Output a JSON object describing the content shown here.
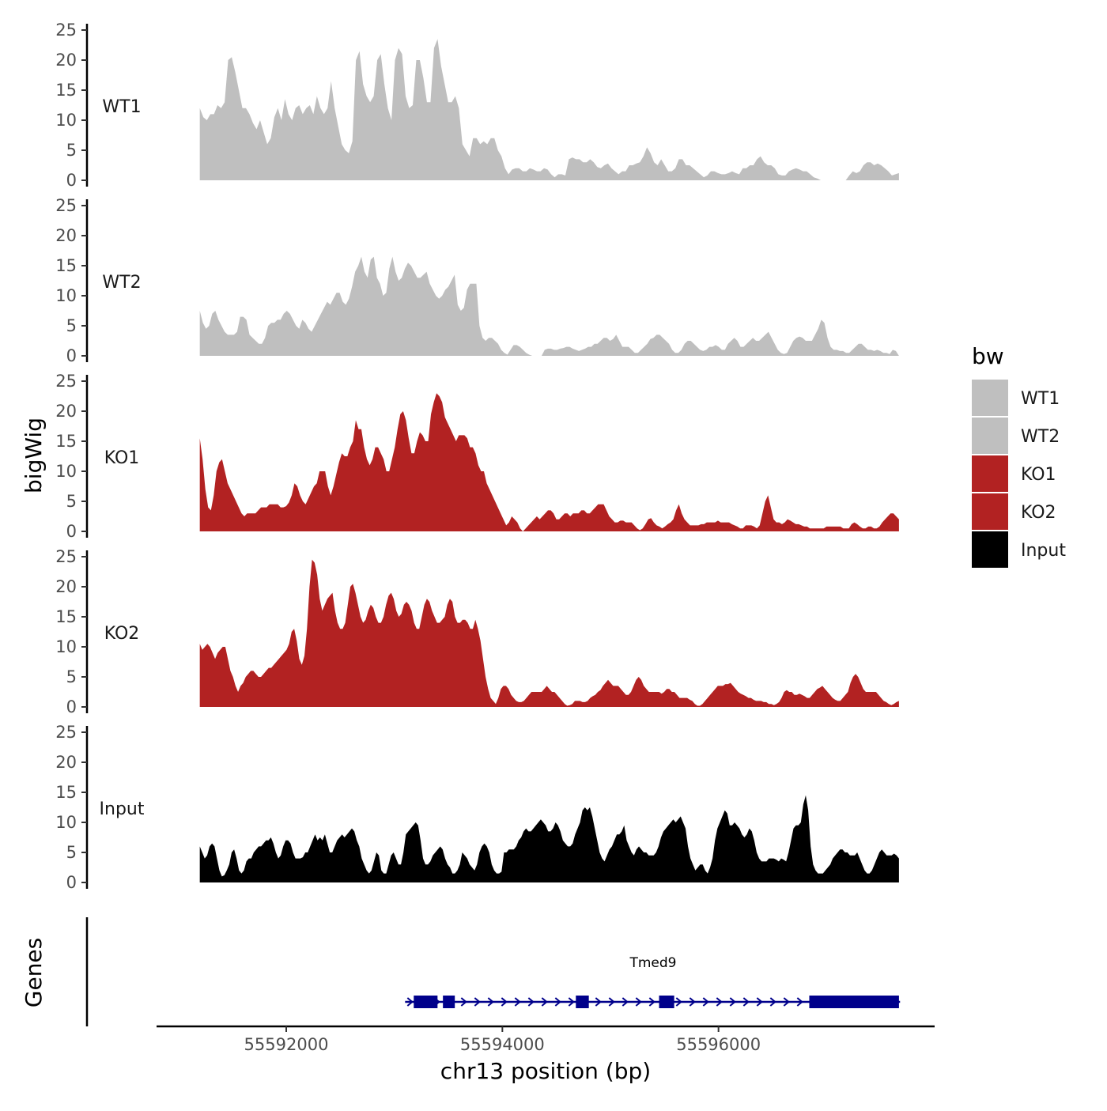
{
  "chart_data": {
    "type": "area",
    "ylabel": "bigWig",
    "genes_label": "Genes",
    "xlabel": "chr13 position (bp)",
    "xlim": [
      55590800,
      55598000
    ],
    "data_range": [
      55591200,
      55597670
    ],
    "x_ticks": [
      55592000,
      55594000,
      55596000
    ],
    "x_tick_labels": [
      "55592000",
      "55594000",
      "55596000"
    ],
    "ylim": [
      0,
      25
    ],
    "y_ticks": [
      0,
      5,
      10,
      15,
      20,
      25
    ],
    "y_tick_labels": [
      "0",
      "5",
      "10",
      "15",
      "20",
      "25"
    ],
    "legend": {
      "title": "bw",
      "position": "right",
      "entries": [
        {
          "label": "WT1",
          "color": "#bfbfbf"
        },
        {
          "label": "WT2",
          "color": "#bfbfbf"
        },
        {
          "label": "KO1",
          "color": "#b22222"
        },
        {
          "label": "KO2",
          "color": "#b22222"
        },
        {
          "label": "Input",
          "color": "#000000"
        }
      ]
    },
    "series": [
      {
        "name": "WT1",
        "color": "#bfbfbf",
        "values": [
          12,
          10.5,
          10,
          11,
          11,
          12.5,
          12,
          13,
          20,
          20.5,
          18,
          15,
          12,
          12,
          11,
          9.5,
          8.5,
          10,
          8,
          6,
          7,
          10.5,
          12,
          10,
          13.5,
          11,
          10,
          12,
          12.5,
          11,
          12,
          12.5,
          11,
          14,
          12,
          11,
          12,
          16.5,
          12,
          9,
          6,
          5,
          4.5,
          6.5,
          20,
          21.5,
          16,
          14,
          13,
          14,
          20,
          21,
          16,
          12,
          10,
          20,
          22,
          21,
          14,
          12,
          12.5,
          20,
          20,
          17,
          13,
          13,
          22,
          23.5,
          19,
          16,
          13,
          13,
          14,
          12,
          6,
          5,
          4,
          7,
          7,
          6,
          6.5,
          6,
          7,
          7,
          5,
          4,
          2,
          1,
          1.8,
          2,
          2,
          1.5,
          1.5,
          2,
          1.8,
          1.5,
          1.5,
          2,
          1.8,
          1,
          0.5,
          1,
          1,
          0.8,
          3.5,
          3.8,
          3.5,
          3.5,
          3,
          3,
          3.5,
          3,
          2.2,
          2,
          2.5,
          2.8,
          2,
          1.5,
          1,
          1.5,
          1.5,
          2.5,
          2.5,
          2.8,
          3,
          4,
          5.5,
          4.5,
          3,
          2.5,
          3.5,
          2.5,
          1.5,
          1.5,
          2,
          3.5,
          3.5,
          2.5,
          2.5,
          2,
          1.5,
          1,
          0.5,
          0.8,
          1.5,
          1.5,
          1.2,
          1,
          1,
          1.2,
          1.5,
          1.2,
          1,
          2,
          2,
          2.5,
          2.5,
          3.5,
          4,
          3,
          2.5,
          2.5,
          2,
          1,
          0.8,
          0.8,
          1.5,
          1.8,
          2,
          1.8,
          1.5,
          1.5,
          1,
          0.5,
          0.3,
          0,
          0,
          0,
          0,
          0,
          0,
          0,
          0,
          0.8,
          1.5,
          1.2,
          1.5,
          2.5,
          3,
          3,
          2.5,
          2.8,
          2.5,
          2,
          1.5,
          0.8,
          1,
          1.2
        ]
      },
      {
        "name": "WT2",
        "color": "#bfbfbf",
        "values": [
          7.5,
          5.5,
          4.5,
          5,
          7,
          7.5,
          6,
          5,
          4,
          3.5,
          3.5,
          3.5,
          4,
          6.5,
          6.5,
          6,
          3.5,
          3,
          2.5,
          2,
          2,
          3,
          5,
          5.5,
          5.5,
          6,
          6,
          7,
          7.5,
          7,
          6,
          5,
          4.5,
          6,
          5.5,
          4.5,
          4,
          5,
          6,
          7,
          8,
          9,
          8.5,
          9.5,
          10.5,
          10.5,
          9,
          8.5,
          9.5,
          11.5,
          14,
          15,
          16.5,
          14,
          13,
          16,
          16.5,
          13,
          12,
          10,
          10.5,
          14.5,
          16.5,
          14,
          12.5,
          13,
          14.5,
          15.5,
          15,
          14,
          13,
          13,
          13.5,
          14,
          12,
          11,
          10,
          9.5,
          10,
          11,
          11.5,
          12.5,
          13.5,
          8.5,
          7.5,
          8,
          11,
          12,
          12,
          12,
          5,
          3,
          2.5,
          3,
          3,
          2.5,
          2,
          1,
          0.5,
          0.2,
          1,
          1.8,
          1.8,
          1.5,
          1,
          0.5,
          0.2,
          0,
          0,
          0,
          0,
          1,
          1.2,
          1.2,
          1,
          1,
          1.2,
          1.3,
          1.5,
          1.5,
          1.2,
          1,
          0.8,
          1,
          1.2,
          1.5,
          1.5,
          2,
          2,
          2.5,
          3,
          3,
          2.5,
          2.8,
          3.5,
          2.5,
          1.5,
          1.5,
          1.5,
          1,
          0.5,
          0.5,
          1,
          1.5,
          2,
          2.8,
          3,
          3.5,
          3.5,
          3,
          2.5,
          2,
          1,
          0.5,
          0.5,
          1,
          2,
          2.5,
          2.5,
          2,
          1.5,
          1,
          0.8,
          1,
          1.5,
          1.5,
          1.8,
          1.5,
          1,
          1,
          2,
          2.5,
          3,
          2.5,
          1.5,
          1.5,
          2,
          2.5,
          3,
          2.5,
          2.5,
          3,
          3.5,
          4,
          3,
          2,
          1,
          0.5,
          0.3,
          0.5,
          1.5,
          2.5,
          3,
          3.2,
          3,
          2.5,
          2.5,
          2.5,
          3.5,
          4.5,
          6,
          5.5,
          3,
          1.5,
          1,
          1,
          0.8,
          0.8,
          0.5,
          0.5,
          1,
          1.5,
          2,
          2,
          1.5,
          1,
          1,
          0.8,
          1,
          0.8,
          0.5,
          0.5,
          0.3,
          1,
          0.8,
          0
        ]
      },
      {
        "name": "KO1",
        "color": "#b22222",
        "values": [
          15.5,
          12,
          7,
          4,
          3.5,
          6,
          10,
          11.5,
          12,
          10,
          8,
          7,
          6,
          5,
          4,
          3,
          2.5,
          3,
          3,
          3,
          3,
          3.5,
          4,
          4,
          4,
          4.5,
          4.5,
          4.5,
          4.5,
          4,
          4,
          4.2,
          4.8,
          6,
          8,
          7.5,
          6,
          5,
          4.5,
          5.5,
          6.5,
          7.5,
          8,
          10,
          10,
          10,
          7.5,
          6,
          7.5,
          9.5,
          11.5,
          13,
          12.5,
          12.5,
          14,
          15,
          18.5,
          17,
          17,
          14,
          12,
          11,
          12,
          14,
          14,
          13,
          12,
          10,
          10,
          12,
          14,
          17,
          19.5,
          20,
          18.5,
          15.5,
          13,
          13,
          15,
          16.5,
          16,
          15,
          15,
          19.5,
          21.5,
          23,
          22.5,
          21.5,
          19,
          18,
          17,
          16,
          15,
          16,
          16,
          16,
          15.5,
          14,
          14,
          13,
          11,
          10,
          10,
          8,
          7,
          6,
          5,
          4,
          3,
          2,
          1,
          1.5,
          2.5,
          2,
          1.5,
          0.5,
          0,
          0.5,
          1,
          1.5,
          2,
          2.5,
          2,
          2.5,
          3,
          3.5,
          3.5,
          3,
          2,
          2,
          2.5,
          3,
          3,
          2.5,
          3,
          3,
          3,
          3.5,
          3.5,
          3,
          3,
          3.5,
          4,
          4.5,
          4.5,
          4.5,
          3.5,
          2.5,
          2,
          1.5,
          1.5,
          1.8,
          1.8,
          1.5,
          1.5,
          1.5,
          1,
          0.5,
          0.2,
          0.5,
          1.2,
          2,
          2.2,
          1.5,
          1,
          0.8,
          0.5,
          0.8,
          1.2,
          1.5,
          2,
          3.5,
          4.5,
          3,
          2,
          1.5,
          1,
          1,
          1,
          1,
          1.2,
          1.2,
          1.5,
          1.5,
          1.5,
          1.5,
          1.8,
          1.5,
          1.5,
          1.5,
          1.5,
          1.2,
          1,
          0.8,
          0.5,
          0.5,
          1,
          1,
          1,
          0.8,
          0.5,
          1,
          3,
          5,
          6,
          4,
          2,
          1.5,
          1.5,
          1.2,
          1.5,
          2,
          1.8,
          1.5,
          1.2,
          1.2,
          1,
          0.8,
          0.8,
          0.5,
          0.5,
          0.5,
          0.5,
          0.5,
          0.5,
          0.8,
          0.8,
          0.8,
          0.8,
          0.8,
          0.8,
          0.5,
          0.5,
          0.5,
          1.2,
          1.5,
          1.2,
          0.8,
          0.5,
          0.5,
          0.8,
          0.8,
          0.5,
          0.5,
          0.8,
          1.5,
          2,
          2.5,
          3,
          3,
          2.5,
          2
        ]
      },
      {
        "name": "KO2",
        "color": "#b22222",
        "values": [
          10.5,
          9.5,
          10,
          10.5,
          10,
          9,
          8,
          9,
          9.5,
          10,
          10,
          8,
          6,
          5,
          3.5,
          2.5,
          3.5,
          4,
          5,
          5.5,
          6,
          6,
          5.5,
          5,
          5,
          5.5,
          6,
          6.5,
          6.5,
          7,
          7.5,
          8,
          8.5,
          9,
          9.5,
          10.5,
          12.5,
          13,
          11,
          8,
          7,
          8.5,
          13,
          20,
          24.5,
          24,
          22,
          18,
          16,
          17,
          18,
          18.5,
          19,
          16,
          14,
          13,
          13,
          14,
          17,
          20,
          20.5,
          19,
          17,
          15,
          14,
          14.5,
          16,
          17,
          16.5,
          15,
          14,
          14,
          15,
          17,
          18.5,
          19,
          18,
          16,
          15,
          15.5,
          17,
          17.5,
          17,
          16,
          14,
          13,
          13,
          15,
          17,
          18,
          17.5,
          16,
          15,
          14,
          14,
          14.5,
          15,
          17,
          18,
          17.5,
          15,
          14,
          14,
          14.5,
          14.5,
          14,
          13,
          13,
          14.5,
          13,
          11,
          8,
          5,
          3,
          1.5,
          1,
          0.5,
          1.5,
          3,
          3.5,
          3.5,
          3,
          2,
          1.5,
          1,
          0.8,
          0.8,
          1,
          1.5,
          2,
          2.5,
          2.5,
          2.5,
          2.5,
          2.5,
          3,
          3.5,
          3,
          2.5,
          2.5,
          2,
          1.5,
          1,
          0.5,
          0.2,
          0.3,
          0.5,
          1,
          1,
          1,
          0.8,
          0.8,
          1,
          1.5,
          1.8,
          2,
          2.5,
          2.8,
          3.5,
          4,
          4.5,
          4,
          3.5,
          3.5,
          3.5,
          3,
          2.5,
          2,
          2,
          2.5,
          3.5,
          4.5,
          5,
          4.5,
          3.5,
          3,
          2.5,
          2.5,
          2.5,
          2.5,
          2.5,
          2.2,
          2.5,
          3,
          3,
          2.5,
          2.5,
          2,
          1.5,
          1.5,
          1.5,
          1.5,
          1.2,
          1,
          0.5,
          0.2,
          0.2,
          0.5,
          1,
          1.5,
          2,
          2.5,
          3,
          3.5,
          3.5,
          3.5,
          3.8,
          3.8,
          4,
          3.5,
          3,
          2.5,
          2.2,
          2,
          1.8,
          1.5,
          1.5,
          1.2,
          1,
          1,
          1,
          0.8,
          0.8,
          0.5,
          0.5,
          0.3,
          0.5,
          0.8,
          1.5,
          2.5,
          2.8,
          2.5,
          2.5,
          2,
          2,
          2.2,
          2,
          1.8,
          1.5,
          1.5,
          2,
          2.5,
          3,
          3.2,
          3.5,
          3,
          2.5,
          2,
          1.5,
          1.2,
          1,
          1,
          1.5,
          2,
          2.5,
          4,
          5,
          5.5,
          5,
          4,
          3,
          2.5,
          2.5,
          2.5,
          2.5,
          2.5,
          2,
          1.5,
          1,
          0.8,
          0.5,
          0.3,
          0.5,
          0.8,
          1
        ]
      },
      {
        "name": "Input",
        "color": "#000000",
        "values": [
          6,
          5,
          4,
          4.5,
          6,
          6.5,
          6,
          4,
          2,
          1,
          1.2,
          2,
          3,
          5,
          5.5,
          4,
          2,
          1.5,
          2,
          3.5,
          4,
          4,
          5,
          5.5,
          6,
          6,
          6.5,
          7,
          7,
          7.5,
          6.5,
          5,
          4,
          4.5,
          6,
          7,
          7,
          6.5,
          5,
          4,
          4,
          4,
          4.2,
          5,
          5,
          6,
          7,
          8,
          7,
          7.5,
          7,
          8,
          6.5,
          5,
          5,
          6,
          7,
          7.5,
          8,
          7.5,
          8,
          8.5,
          9,
          8.5,
          7,
          6,
          4,
          3,
          2,
          1.5,
          2,
          3.5,
          5,
          4.5,
          2,
          1.5,
          1.5,
          3,
          4.5,
          5,
          4,
          3,
          3,
          5,
          8,
          8.5,
          9,
          9.5,
          10,
          9.5,
          7,
          4,
          3,
          3,
          3.5,
          4.5,
          5,
          5.5,
          6,
          5.5,
          4,
          3,
          2.5,
          1.5,
          1.5,
          2,
          3,
          5,
          4.5,
          4,
          3,
          2.5,
          2,
          3,
          5,
          6,
          6.5,
          6,
          5,
          3,
          2,
          1.5,
          1.5,
          1.8,
          5,
          5,
          5.5,
          5.5,
          5.5,
          6,
          7,
          7.5,
          8.5,
          9,
          8.5,
          8.5,
          9,
          9.5,
          10,
          10.5,
          10,
          9.5,
          8.5,
          8.5,
          9,
          10,
          9.5,
          8.5,
          7,
          6.5,
          6,
          6,
          6.5,
          8,
          9,
          10,
          12,
          12.5,
          12,
          12.5,
          11,
          9,
          7,
          5,
          4,
          3.5,
          4.5,
          5.5,
          6,
          7,
          8,
          8,
          8.5,
          9.5,
          7,
          6,
          5,
          4.5,
          5.5,
          6,
          5.5,
          5,
          5,
          4.5,
          4.5,
          4.5,
          5,
          6,
          7.5,
          8.5,
          9,
          9.5,
          10,
          10.5,
          10,
          10.5,
          11,
          10,
          9,
          6,
          4,
          3,
          2,
          2.5,
          3,
          3,
          2,
          1.5,
          2.5,
          4,
          7,
          9,
          10,
          11,
          12,
          11.5,
          9.5,
          9.5,
          10,
          9.5,
          9,
          8,
          7.5,
          8,
          9,
          8.5,
          7,
          5,
          4,
          3.5,
          3.5,
          3.5,
          4,
          4,
          4,
          3.8,
          3.5,
          4,
          3.8,
          3.5,
          5,
          7,
          9,
          9.5,
          9.5,
          10,
          13,
          14.5,
          12,
          6,
          3,
          2,
          1.5,
          1.5,
          1.5,
          2,
          2.5,
          3,
          4,
          4.5,
          5,
          5.5,
          5.5,
          5,
          5,
          4.5,
          4.5,
          4.5,
          5,
          4,
          3,
          2,
          1.5,
          1.5,
          2,
          3,
          4,
          5,
          5.5,
          5,
          4.5,
          4.5,
          4.5,
          4.8,
          4.5,
          4
        ]
      }
    ],
    "gene_track": {
      "gene_name": "Tmed9",
      "strand": "+",
      "line_start": 55593100,
      "line_end": 55597680,
      "color": "#00008b",
      "exons": [
        [
          55593180,
          55593400
        ],
        [
          55593450,
          55593560
        ],
        [
          55594680,
          55594800
        ],
        [
          55595450,
          55595590
        ],
        [
          55596840,
          55597670
        ]
      ]
    }
  }
}
